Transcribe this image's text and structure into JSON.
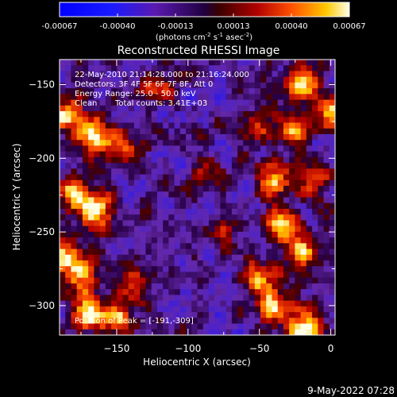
{
  "chart_data": {
    "type": "heatmap",
    "title": "Reconstructed RHESSI Image",
    "xlabel": "Heliocentric X (arcsec)",
    "ylabel": "Heliocentric Y (arcsec)",
    "xlim": [
      -190,
      3
    ],
    "ylim": [
      -320,
      -133
    ],
    "x_ticks": [
      -150,
      -100,
      -50,
      0
    ],
    "y_ticks": [
      -150,
      -200,
      -250,
      -300
    ],
    "colorbar": {
      "ticks": [
        "-0.00067",
        "-0.00040",
        "-0.00013",
        "0.00013",
        "0.00040",
        "0.00067"
      ],
      "range": [
        -0.00067,
        0.00067
      ],
      "unit_label": [
        "(photons cm",
        "-2",
        " s",
        "-1",
        " asec",
        "-2",
        ")"
      ]
    },
    "annotations": {
      "time_range": "22-May-2010 21:14:28.000 to 21:16:24.000",
      "detectors": "Detectors: 3F 4F 5F 6F 7F 8F, Att 0",
      "energy_range": "Energy Range: 25.0 - 50.0 keV",
      "clean": "Clean",
      "total_counts": "Total counts: 3.41E+03",
      "peak": "Position of Peak = [-191,-309]"
    },
    "footer_date": "9-May-2022 07:28",
    "hot_spots": [
      {
        "x": -185,
        "y": -170,
        "intensity": 0.9
      },
      {
        "x": -165,
        "y": -185,
        "intensity": 0.95
      },
      {
        "x": -145,
        "y": -195,
        "intensity": 0.75
      },
      {
        "x": -180,
        "y": -225,
        "intensity": 0.8
      },
      {
        "x": -165,
        "y": -235,
        "intensity": 0.95
      },
      {
        "x": -188,
        "y": -265,
        "intensity": 1.0
      },
      {
        "x": -175,
        "y": -280,
        "intensity": 0.85
      },
      {
        "x": -170,
        "y": -305,
        "intensity": 0.95
      },
      {
        "x": -150,
        "y": -310,
        "intensity": 0.8
      },
      {
        "x": -140,
        "y": -285,
        "intensity": 0.6
      },
      {
        "x": -120,
        "y": -150,
        "intensity": 0.6
      },
      {
        "x": -20,
        "y": -150,
        "intensity": 0.95
      },
      {
        "x": 0,
        "y": -170,
        "intensity": 0.8
      },
      {
        "x": -25,
        "y": -180,
        "intensity": 0.7
      },
      {
        "x": -40,
        "y": -215,
        "intensity": 0.85
      },
      {
        "x": -10,
        "y": -215,
        "intensity": 0.7
      },
      {
        "x": -35,
        "y": -245,
        "intensity": 0.95
      },
      {
        "x": -20,
        "y": -265,
        "intensity": 0.9
      },
      {
        "x": -50,
        "y": -280,
        "intensity": 0.7
      },
      {
        "x": -40,
        "y": -300,
        "intensity": 0.85
      },
      {
        "x": -20,
        "y": -315,
        "intensity": 0.95
      },
      {
        "x": -75,
        "y": -250,
        "intensity": 0.45
      },
      {
        "x": -55,
        "y": -180,
        "intensity": 0.5
      },
      {
        "x": -85,
        "y": -210,
        "intensity": 0.35
      }
    ]
  }
}
